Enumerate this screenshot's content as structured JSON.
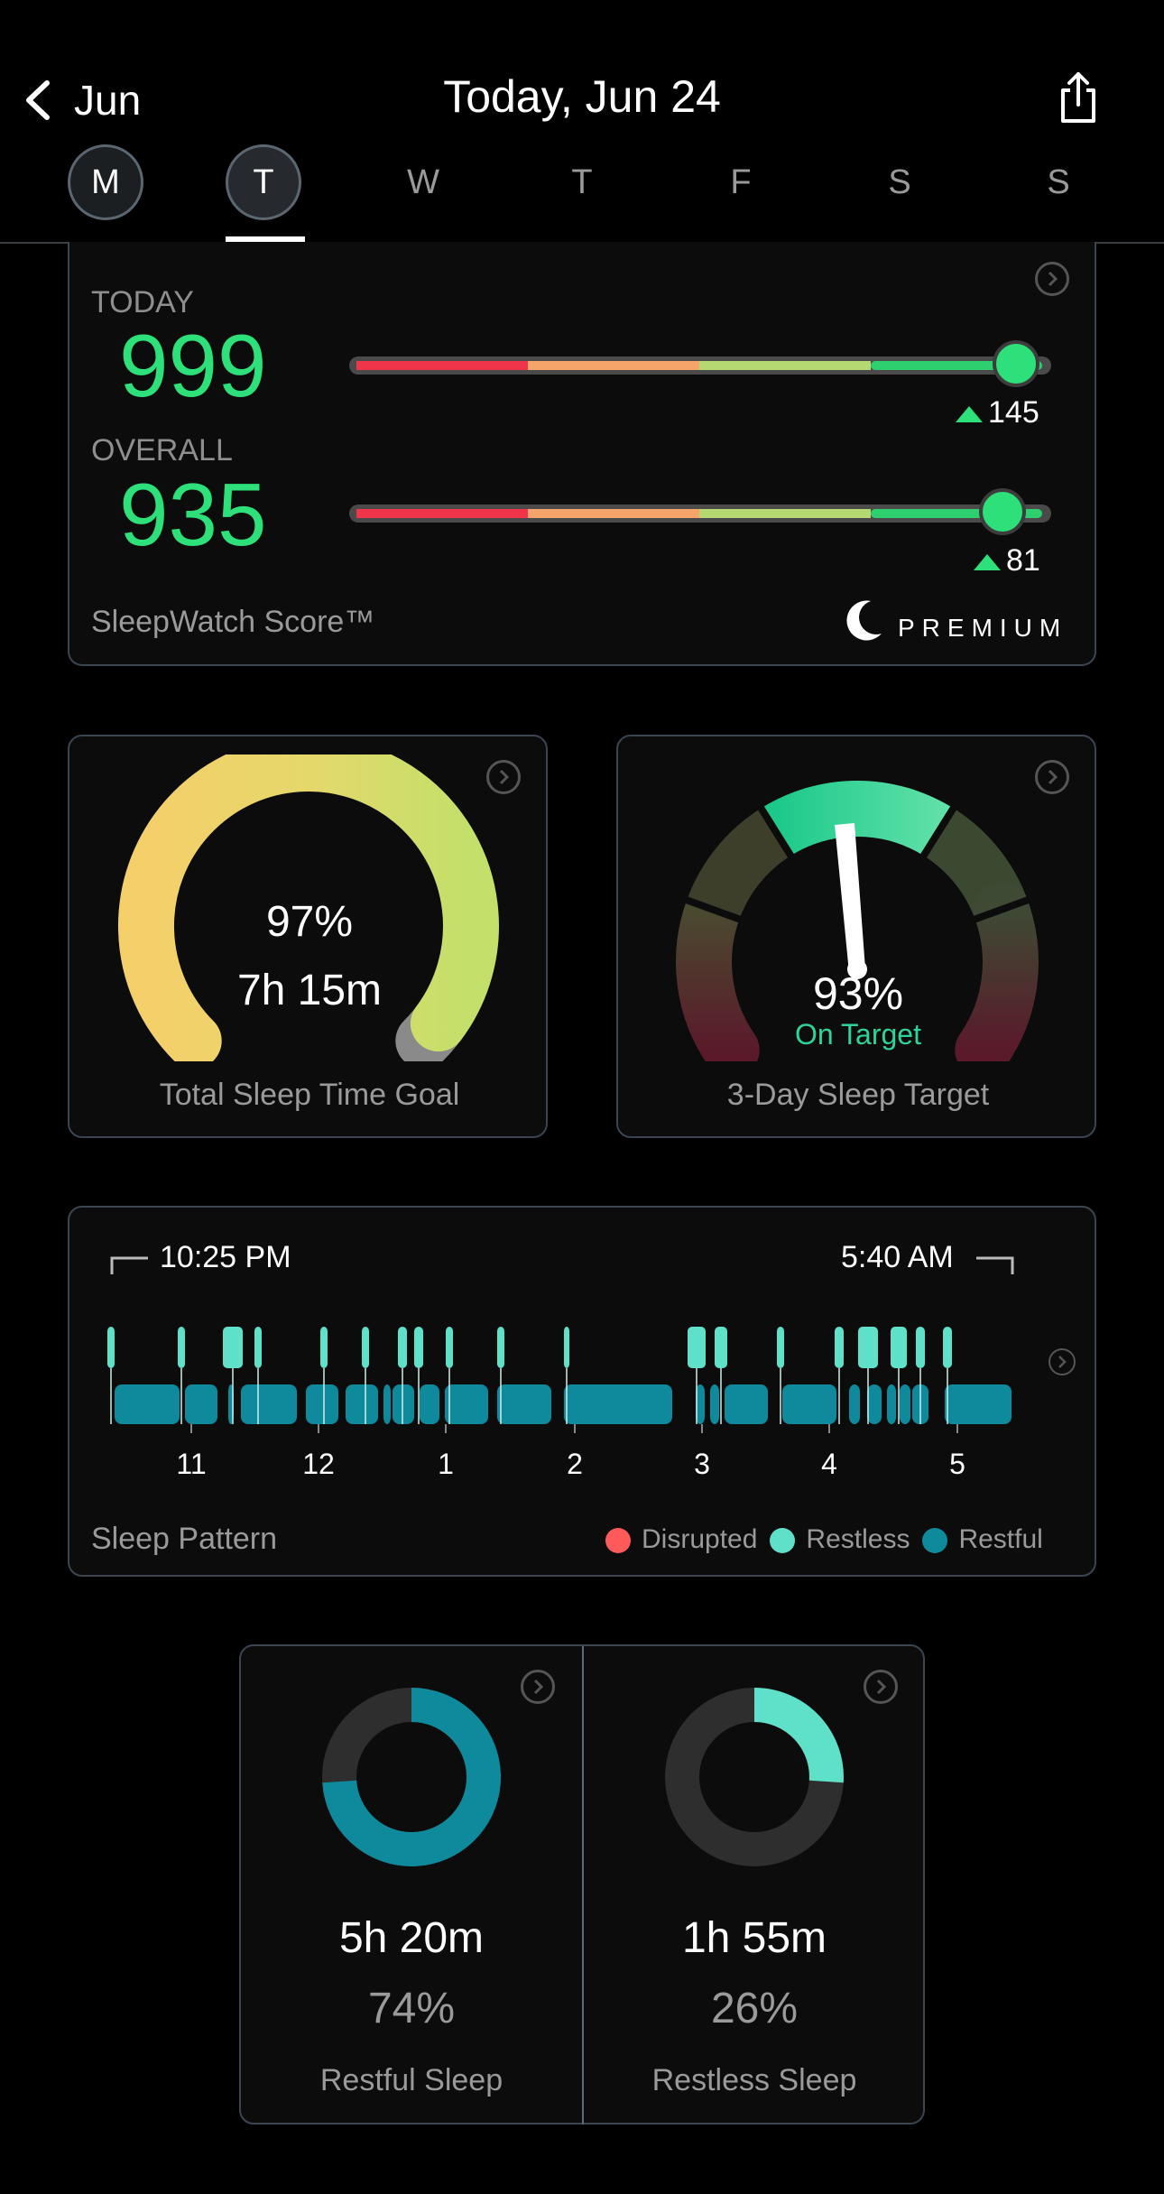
{
  "header": {
    "back_label": "Jun",
    "title": "Today, Jun 24",
    "days": [
      {
        "label": "M",
        "state": "circled"
      },
      {
        "label": "T",
        "state": "selected"
      },
      {
        "label": "W",
        "state": "plain"
      },
      {
        "label": "T",
        "state": "plain"
      },
      {
        "label": "F",
        "state": "plain"
      },
      {
        "label": "S",
        "state": "plain"
      },
      {
        "label": "S",
        "state": "plain"
      }
    ]
  },
  "score_card": {
    "today_label": "TODAY",
    "today_value": "999",
    "today_change": "145",
    "today_level": 0.95,
    "overall_label": "OVERALL",
    "overall_value": "935",
    "overall_change": "81",
    "overall_level": 0.93,
    "footer_label": "SleepWatch Score™",
    "premium_label": "PREMIUM"
  },
  "total_sleep_card": {
    "percent": "97%",
    "duration": "7h 15m",
    "label": "Total Sleep Time Goal",
    "fill": 0.97
  },
  "target_card": {
    "percent": "93%",
    "status": "On Target",
    "label": "3-Day Sleep Target"
  },
  "pattern_card": {
    "start_time": "10:25 PM",
    "end_time": "5:40 AM",
    "hour_ticks": [
      "11",
      "12",
      "1",
      "2",
      "3",
      "4",
      "5"
    ],
    "label": "Sleep Pattern",
    "legend": [
      {
        "name": "Disrupted",
        "color": "#ff5a5a"
      },
      {
        "name": "Restless",
        "color": "#5fe0c8"
      },
      {
        "name": "Restful",
        "color": "#0e8a9c"
      }
    ]
  },
  "restful_card": {
    "duration": "5h 20m",
    "percent": "74%",
    "label": "Restful Sleep",
    "fraction": 0.74,
    "color": "#0e8a9c"
  },
  "restless_card": {
    "duration": "1h 55m",
    "percent": "26%",
    "label": "Restless Sleep",
    "fraction": 0.26,
    "color": "#5fe0c8"
  },
  "colors": {
    "accent_green": "#2ee07a",
    "on_target": "#2ed39a"
  }
}
